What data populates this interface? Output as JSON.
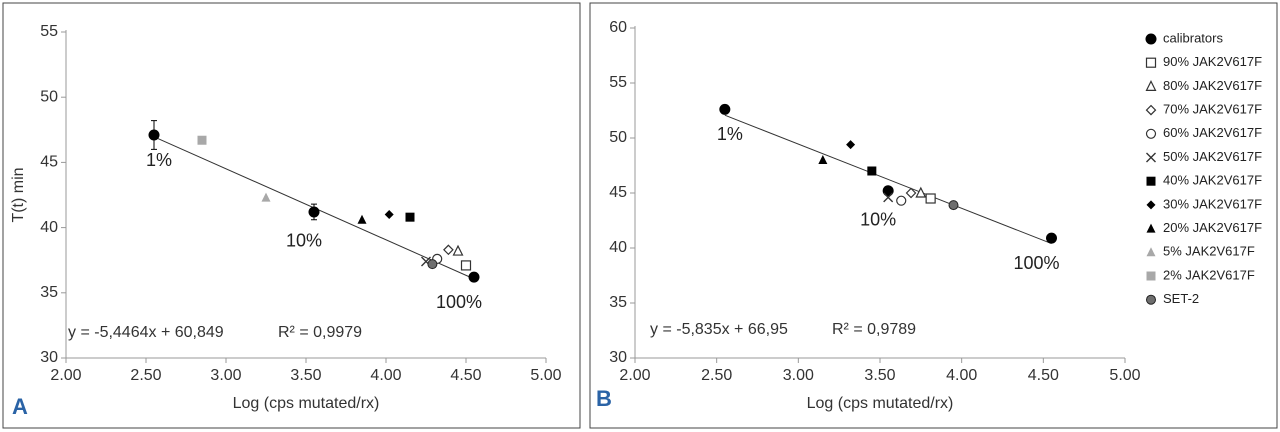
{
  "chart_data": [
    {
      "type": "scatter",
      "panel": "A",
      "xlabel": "Log (cps mutated/rx)",
      "ylabel": "T(t) min",
      "xlim": [
        2,
        5
      ],
      "xticks": [
        {
          "value": 2,
          "label": "2.00"
        },
        {
          "value": 2.5,
          "label": "2.50"
        },
        {
          "value": 3,
          "label": "3.00"
        },
        {
          "value": 3.5,
          "label": "3.50"
        },
        {
          "value": 4,
          "label": "4.00"
        },
        {
          "value": 4.5,
          "label": "4.50"
        },
        {
          "value": 5,
          "label": "5.00"
        }
      ],
      "ylim": [
        30,
        55
      ],
      "yticks": [
        30,
        35,
        40,
        45,
        50,
        55
      ],
      "series": [
        {
          "name": "calibrators",
          "marker": "circle",
          "color": "#000000",
          "x": [
            2.55,
            3.55,
            4.55
          ],
          "values": [
            47.1,
            41.2,
            36.2
          ],
          "error": [
            1.1,
            0.6,
            null
          ]
        },
        {
          "name": "90% JAK2V617F",
          "marker": "square-open",
          "color": "#333333",
          "x": [
            4.5
          ],
          "values": [
            37.1
          ]
        },
        {
          "name": "80% JAK2V617F",
          "marker": "triangle-open",
          "color": "#333333",
          "x": [
            4.45
          ],
          "values": [
            38.2
          ]
        },
        {
          "name": "70% JAK2V617F",
          "marker": "diamond-open",
          "color": "#333333",
          "x": [
            4.39
          ],
          "values": [
            38.3
          ]
        },
        {
          "name": "60% JAK2V617F",
          "marker": "circle-open",
          "color": "#333333",
          "x": [
            4.32
          ],
          "values": [
            37.6
          ]
        },
        {
          "name": "50% JAK2V617F",
          "marker": "x",
          "color": "#333333",
          "x": [
            4.25
          ],
          "values": [
            37.4
          ]
        },
        {
          "name": "40% JAK2V617F",
          "marker": "square",
          "color": "#000000",
          "x": [
            4.15
          ],
          "values": [
            40.8
          ]
        },
        {
          "name": "30% JAK2V617F",
          "marker": "diamond",
          "color": "#000000",
          "x": [
            4.02
          ],
          "values": [
            41.0
          ]
        },
        {
          "name": "20% JAK2V617F",
          "marker": "triangle",
          "color": "#000000",
          "x": [
            3.85
          ],
          "values": [
            40.6
          ]
        },
        {
          "name": "5% JAK2V617F",
          "marker": "triangle",
          "color": "#a8a8a8",
          "x": [
            3.25
          ],
          "values": [
            42.3
          ]
        },
        {
          "name": "2% JAK2V617F",
          "marker": "square",
          "color": "#a8a8a8",
          "x": [
            2.85
          ],
          "values": [
            46.7
          ]
        },
        {
          "name": "SET-2",
          "marker": "circle-gray",
          "color": "#6e6e6e",
          "x": [
            4.29
          ],
          "values": [
            37.2
          ]
        }
      ],
      "trendline": {
        "slope": -5.4464,
        "intercept": 60.849,
        "x": [
          2.55,
          4.55
        ]
      },
      "equation": "y = -5,4464x + 60,849",
      "r2": "R² = 0,9979",
      "annotations": [
        "1%",
        "10%",
        "100%"
      ]
    },
    {
      "type": "scatter",
      "panel": "B",
      "xlabel": "Log (cps mutated/rx)",
      "xlim": [
        2,
        5
      ],
      "xticks": [
        {
          "value": 2,
          "label": "2.00"
        },
        {
          "value": 2.5,
          "label": "2.50"
        },
        {
          "value": 3,
          "label": "3.00"
        },
        {
          "value": 3.5,
          "label": "3.50"
        },
        {
          "value": 4,
          "label": "4.00"
        },
        {
          "value": 4.5,
          "label": "4.50"
        },
        {
          "value": 5,
          "label": "5.00"
        }
      ],
      "ylim": [
        30,
        60
      ],
      "yticks": [
        30,
        35,
        40,
        45,
        50,
        55,
        60
      ],
      "series": [
        {
          "name": "calibrators",
          "marker": "circle",
          "color": "#000000",
          "x": [
            2.55,
            3.55,
            4.55
          ],
          "values": [
            52.6,
            45.2,
            40.9
          ]
        },
        {
          "name": "90% JAK2V617F",
          "marker": "square-open",
          "color": "#333333",
          "x": [
            3.81
          ],
          "values": [
            44.5
          ]
        },
        {
          "name": "80% JAK2V617F",
          "marker": "triangle-open",
          "color": "#333333",
          "x": [
            3.75
          ],
          "values": [
            45.0
          ]
        },
        {
          "name": "70% JAK2V617F",
          "marker": "diamond-open",
          "color": "#333333",
          "x": [
            3.69
          ],
          "values": [
            45.0
          ]
        },
        {
          "name": "60% JAK2V617F",
          "marker": "circle-open",
          "color": "#333333",
          "x": [
            3.63
          ],
          "values": [
            44.3
          ]
        },
        {
          "name": "50% JAK2V617F",
          "marker": "x",
          "color": "#333333",
          "x": [
            3.55
          ],
          "values": [
            44.6
          ]
        },
        {
          "name": "40% JAK2V617F",
          "marker": "square",
          "color": "#000000",
          "x": [
            3.45
          ],
          "values": [
            47.0
          ]
        },
        {
          "name": "30% JAK2V617F",
          "marker": "diamond",
          "color": "#000000",
          "x": [
            3.32
          ],
          "values": [
            49.4
          ]
        },
        {
          "name": "20% JAK2V617F",
          "marker": "triangle",
          "color": "#000000",
          "x": [
            3.15
          ],
          "values": [
            48.0
          ]
        },
        {
          "name": "SET-2",
          "marker": "circle-gray",
          "color": "#6e6e6e",
          "x": [
            3.95
          ],
          "values": [
            43.9
          ]
        }
      ],
      "trendline": {
        "slope": -5.835,
        "intercept": 66.95,
        "x": [
          2.55,
          4.55
        ]
      },
      "equation": "y = -5,835x + 66,95",
      "r2": "R² = 0,9789",
      "annotations": [
        "1%",
        "10%",
        "100%"
      ]
    }
  ]
}
